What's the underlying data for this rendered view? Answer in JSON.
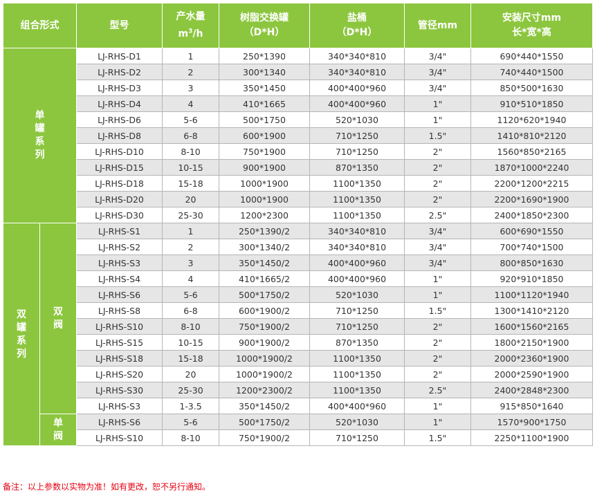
{
  "header": {
    "combo": "组合形式",
    "model": "型号",
    "flow_line1": "产水量",
    "flow_unit_pre": "m",
    "flow_unit_sup": "3",
    "flow_unit_post": "/h",
    "resin_line1": "树脂交换罐",
    "resin_line2": "（D*H）",
    "brine_line1": "盐桶",
    "brine_line2": "（D*H）",
    "pipe": "管径mm",
    "size_line1": "安装尺寸mm",
    "size_line2": "长*宽*高"
  },
  "groups": {
    "single_series": "单罐系列",
    "double_series": "双罐系列",
    "double_valve": "双阀",
    "single_valve": "单阀"
  },
  "rows": [
    {
      "model": "LJ-RHS-D1",
      "flow": "1",
      "resin": "250*1390",
      "brine": "340*340*810",
      "pipe": "3/4\"",
      "size": "690*440*1550"
    },
    {
      "model": "LJ-RHS-D2",
      "flow": "2",
      "resin": "300*1340",
      "brine": "340*340*810",
      "pipe": "3/4\"",
      "size": "740*440*1500"
    },
    {
      "model": "LJ-RHS-D3",
      "flow": "3",
      "resin": "350*1450",
      "brine": "400*400*960",
      "pipe": "3/4\"",
      "size": "850*500*1630"
    },
    {
      "model": "LJ-RHS-D4",
      "flow": "4",
      "resin": "410*1665",
      "brine": "400*400*960",
      "pipe": "1\"",
      "size": "910*510*1850"
    },
    {
      "model": "LJ-RHS-D6",
      "flow": "5-6",
      "resin": "500*1750",
      "brine": "520*1030",
      "pipe": "1\"",
      "size": "1120*620*1940"
    },
    {
      "model": "LJ-RHS-D8",
      "flow": "6-8",
      "resin": "600*1900",
      "brine": "710*1250",
      "pipe": "1.5\"",
      "size": "1410*810*2120"
    },
    {
      "model": "LJ-RHS-D10",
      "flow": "8-10",
      "resin": "750*1900",
      "brine": "710*1250",
      "pipe": "2\"",
      "size": "1560*850*2165"
    },
    {
      "model": "LJ-RHS-D15",
      "flow": "10-15",
      "resin": "900*1900",
      "brine": "870*1350",
      "pipe": "2\"",
      "size": "1870*1000*2240"
    },
    {
      "model": "LJ-RHS-D18",
      "flow": "15-18",
      "resin": "1000*1900",
      "brine": "1100*1350",
      "pipe": "2\"",
      "size": "2200*1200*2215"
    },
    {
      "model": "LJ-RHS-D20",
      "flow": "20",
      "resin": "1000*1900",
      "brine": "1100*1350",
      "pipe": "2\"",
      "size": "2200*1690*1900"
    },
    {
      "model": "LJ-RHS-D30",
      "flow": "25-30",
      "resin": "1200*2300",
      "brine": "1100*1350",
      "pipe": "2.5\"",
      "size": "2400*1850*2300"
    },
    {
      "model": "LJ-RHS-S1",
      "flow": "1",
      "resin": "250*1390/2",
      "brine": "340*340*810",
      "pipe": "3/4\"",
      "size": "600*690*1550"
    },
    {
      "model": "LJ-RHS-S2",
      "flow": "2",
      "resin": "300*1340/2",
      "brine": "340*340*810",
      "pipe": "3/4\"",
      "size": "700*740*1500"
    },
    {
      "model": "LJ-RHS-S3",
      "flow": "3",
      "resin": "350*1450/2",
      "brine": "400*400*960",
      "pipe": "3/4\"",
      "size": "800*850*1630"
    },
    {
      "model": "LJ-RHS-S4",
      "flow": "4",
      "resin": "410*1665/2",
      "brine": "400*400*960",
      "pipe": "1\"",
      "size": "920*910*1850"
    },
    {
      "model": "LJ-RHS-S6",
      "flow": "5-6",
      "resin": "500*1750/2",
      "brine": "520*1030",
      "pipe": "1\"",
      "size": "1100*1120*1940"
    },
    {
      "model": "LJ-RHS-S8",
      "flow": "6-8",
      "resin": "600*1900/2",
      "brine": "710*1250",
      "pipe": "1.5\"",
      "size": "1300*1410*2120"
    },
    {
      "model": "LJ-RHS-S10",
      "flow": "8-10",
      "resin": "750*1900/2",
      "brine": "710*1250",
      "pipe": "2\"",
      "size": "1600*1560*2165"
    },
    {
      "model": "LJ-RHS-S15",
      "flow": "10-15",
      "resin": "900*1900/2",
      "brine": "870*1350",
      "pipe": "2\"",
      "size": "1800*2150*1900"
    },
    {
      "model": "LJ-RHS-S18",
      "flow": "15-18",
      "resin": "1000*1900/2",
      "brine": "1100*1350",
      "pipe": "2\"",
      "size": "2000*2360*1900"
    },
    {
      "model": "LJ-RHS-S20",
      "flow": "20",
      "resin": "1000*1900/2",
      "brine": "1100*1350",
      "pipe": "2\"",
      "size": "2000*2590*1900"
    },
    {
      "model": "LJ-RHS-S30",
      "flow": "25-30",
      "resin": "1200*2300/2",
      "brine": "1100*1350",
      "pipe": "2.5\"",
      "size": "2400*2848*2300"
    },
    {
      "model": "LJ-RHS-S3",
      "flow": "1-3.5",
      "resin": "350*1450/2",
      "brine": "400*400*960",
      "pipe": "1\"",
      "size": "915*850*1640"
    },
    {
      "model": "LJ-RHS-S6",
      "flow": "5-6",
      "resin": "500*1750/2",
      "brine": "520*1030",
      "pipe": "1\"",
      "size": "1570*900*1750"
    },
    {
      "model": "LJ-RHS-S10",
      "flow": "8-10",
      "resin": "750*1900/2",
      "brine": "710*1250",
      "pipe": "1.5\"",
      "size": "2250*1100*1900"
    }
  ],
  "note": "备注：以上参数以实物为准！如有更改，恕不另行通知。",
  "colors": {
    "header_green": "#8cc63f",
    "row_gray": "#e6e6e6",
    "note_red": "#e60012"
  }
}
